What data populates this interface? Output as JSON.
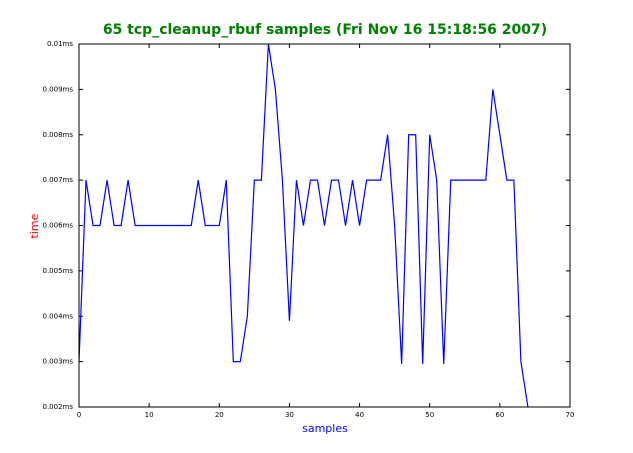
{
  "chart_data": {
    "type": "line",
    "title": "65 tcp_cleanup_rbuf samples (Fri Nov 16 15:18:56 2007)",
    "xlabel": "samples",
    "ylabel": "time",
    "x": [
      0,
      1,
      2,
      3,
      4,
      5,
      6,
      7,
      8,
      9,
      10,
      11,
      12,
      13,
      14,
      15,
      16,
      17,
      18,
      19,
      20,
      21,
      22,
      23,
      24,
      25,
      26,
      27,
      28,
      29,
      30,
      31,
      32,
      33,
      34,
      35,
      36,
      37,
      38,
      39,
      40,
      41,
      42,
      43,
      44,
      45,
      46,
      47,
      48,
      49,
      50,
      51,
      52,
      53,
      54,
      55,
      56,
      57,
      58,
      59,
      60,
      61,
      62,
      63,
      64
    ],
    "series": [
      {
        "name": "tcp_cleanup_rbuf",
        "color": "#0000ff",
        "values": [
          0.003,
          0.007,
          0.006,
          0.006,
          0.007,
          0.006,
          0.006,
          0.007,
          0.006,
          0.006,
          0.006,
          0.006,
          0.006,
          0.006,
          0.006,
          0.006,
          0.006,
          0.007,
          0.006,
          0.006,
          0.006,
          0.007,
          0.003,
          0.003,
          0.004,
          0.007,
          0.007,
          0.01,
          0.009,
          0.007,
          0.0039,
          0.007,
          0.006,
          0.007,
          0.007,
          0.006,
          0.007,
          0.007,
          0.006,
          0.007,
          0.006,
          0.007,
          0.007,
          0.007,
          0.008,
          0.006,
          0.00295,
          0.008,
          0.008,
          0.00295,
          0.008,
          0.007,
          0.00295,
          0.007,
          0.007,
          0.007,
          0.007,
          0.007,
          0.007,
          0.009,
          0.008,
          0.007,
          0.007,
          0.003,
          0.002
        ]
      }
    ],
    "xlim": [
      0,
      70
    ],
    "xticks": [
      0,
      10,
      20,
      30,
      40,
      50,
      60,
      70
    ],
    "ylim": [
      0.002,
      0.01
    ],
    "yticks": [
      {
        "value": 0.002,
        "label": "0.002ms"
      },
      {
        "value": 0.003,
        "label": "0.003ms"
      },
      {
        "value": 0.004,
        "label": "0.004ms"
      },
      {
        "value": 0.005,
        "label": "0.005ms"
      },
      {
        "value": 0.006,
        "label": "0.006ms"
      },
      {
        "value": 0.007,
        "label": "0.007ms"
      },
      {
        "value": 0.008,
        "label": "0.008ms"
      },
      {
        "value": 0.009,
        "label": "0.009ms"
      },
      {
        "value": 0.01,
        "label": "0.01ms"
      }
    ],
    "grid": false
  }
}
